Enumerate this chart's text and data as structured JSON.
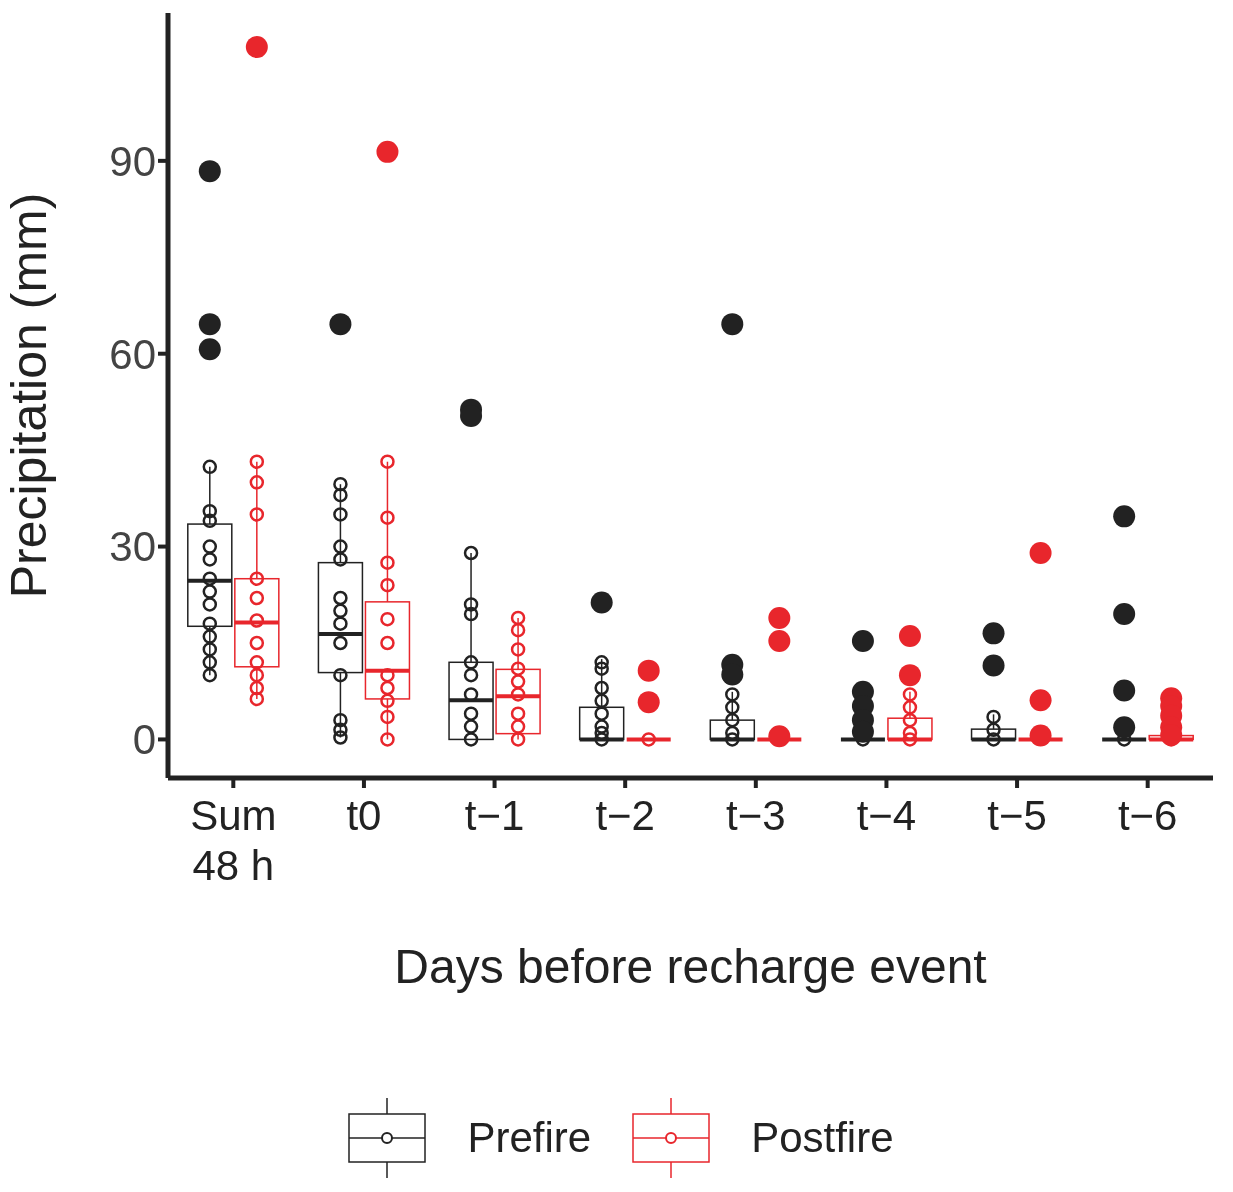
{
  "chart_data": {
    "type": "box",
    "xlabel": "Days before recharge event",
    "ylabel": "Precipitation (mm)",
    "categories": [
      "Sum 48 h",
      "t0",
      "t−1",
      "t−2",
      "t−3",
      "t−4",
      "t−5",
      "t−6"
    ],
    "ylim": [
      -6,
      113
    ],
    "yticks": [
      0,
      30,
      60,
      90
    ],
    "legend": "bottom",
    "marker": "circle",
    "series": [
      {
        "name": "Prefire",
        "color": "#222222",
        "boxes": [
          {
            "low": 10,
            "q1": 17.6,
            "median": 24.7,
            "q3": 33.5,
            "high": 42.4,
            "outliers": [
              88.4,
              64.6,
              60.7
            ]
          },
          {
            "low": 0.3,
            "q1": 10.4,
            "median": 16.4,
            "q3": 27.5,
            "high": 39.7,
            "outliers": [
              64.6
            ]
          },
          {
            "low": 0,
            "q1": 0,
            "median": 6.1,
            "q3": 12,
            "high": 29,
            "outliers": [
              51.3,
              50.3
            ]
          },
          {
            "low": 0,
            "q1": 0,
            "median": 0,
            "q3": 5,
            "high": 12.5,
            "outliers": [
              21.3
            ]
          },
          {
            "low": 0,
            "q1": 0,
            "median": 0,
            "q3": 3,
            "high": 7.4,
            "outliers": [
              64.6,
              11.6,
              10.1
            ]
          },
          {
            "low": 0,
            "q1": 0,
            "median": 0,
            "q3": 0,
            "high": 0,
            "outliers": [
              15.3,
              7.4,
              5.2,
              3,
              1.2
            ]
          },
          {
            "low": 0,
            "q1": 0,
            "median": 0,
            "q3": 1.6,
            "high": 3.9,
            "outliers": [
              16.5,
              11.5
            ]
          },
          {
            "low": 0,
            "q1": 0,
            "median": 0,
            "q3": 0,
            "high": 0,
            "outliers": [
              34.7,
              19.5,
              7.6,
              1.9
            ]
          }
        ]
      },
      {
        "name": "Postfire",
        "color": "#e8262c",
        "boxes": [
          {
            "low": 6.3,
            "q1": 11.3,
            "median": 18.2,
            "q3": 25,
            "high": 43.2,
            "outliers": [
              107.7
            ]
          },
          {
            "low": 0,
            "q1": 6.3,
            "median": 10.7,
            "q3": 21.4,
            "high": 43.2,
            "outliers": [
              91.4
            ]
          },
          {
            "low": 0,
            "q1": 0.9,
            "median": 6.7,
            "q3": 10.9,
            "high": 18.9
          },
          {
            "low": 0,
            "q1": 0,
            "median": 0,
            "q3": 0,
            "high": 0,
            "outliers": [
              10.7,
              5.8
            ]
          },
          {
            "low": 0,
            "q1": 0,
            "median": 0,
            "q3": 0,
            "high": 0,
            "outliers": [
              18.9,
              15.3,
              0.5
            ]
          },
          {
            "low": 0,
            "q1": 0,
            "median": 0,
            "q3": 3.3,
            "high": 7.4,
            "outliers": [
              16.1,
              10
            ]
          },
          {
            "low": 0,
            "q1": 0,
            "median": 0,
            "q3": 0,
            "high": 0,
            "outliers": [
              29,
              6.1,
              0.6
            ]
          },
          {
            "low": 0,
            "q1": 0,
            "median": 0,
            "q3": 0.6,
            "high": 0.6,
            "outliers": [
              6.4,
              5.2,
              3.7,
              1.9,
              0.7
            ]
          }
        ]
      },
      {
        "type": "scatter",
        "color": "#222222",
        "x": [
          "Sum 48 h",
          "Sum 48 h",
          "Sum 48 h",
          "Sum 48 h",
          "Sum 48 h",
          "Sum 48 h",
          "Sum 48 h",
          "Sum 48 h",
          "Sum 48 h",
          "Sum 48 h",
          "Sum 48 h",
          "Sum 48 h",
          "Sum 48 h",
          "t0",
          "t0",
          "t0",
          "t0",
          "t0",
          "t0",
          "t0",
          "t0",
          "t0",
          "t0",
          "t0",
          "t0",
          "t0",
          "t−1",
          "t−1",
          "t−1",
          "t−1",
          "t−1",
          "t−1",
          "t−1",
          "t−1",
          "t−1",
          "t−2",
          "t−2",
          "t−2",
          "t−2",
          "t−2",
          "t−2",
          "t−2",
          "t−2",
          "t−3",
          "t−3",
          "t−3",
          "t−3",
          "t−3",
          "t−4",
          "t−5",
          "t−5",
          "t−5",
          "t−6"
        ],
        "values": [
          42.4,
          35.5,
          34,
          30,
          28,
          25,
          23,
          21,
          18,
          16,
          14,
          12,
          10,
          39.7,
          38,
          35,
          30,
          28,
          22,
          20,
          18,
          15,
          10,
          3,
          1.5,
          0.3,
          29,
          21,
          19.5,
          12,
          10,
          7,
          4,
          2,
          0,
          12,
          11,
          8,
          6,
          4,
          2,
          1,
          0,
          7,
          5,
          3,
          1,
          0,
          0,
          3.5,
          1.5,
          0,
          0
        ]
      },
      {
        "type": "scatter",
        "color": "#e8262c",
        "x": [
          "Sum 48 h",
          "Sum 48 h",
          "Sum 48 h",
          "Sum 48 h",
          "Sum 48 h",
          "Sum 48 h",
          "Sum 48 h",
          "Sum 48 h",
          "Sum 48 h",
          "Sum 48 h",
          "Sum 48 h",
          "t0",
          "t0",
          "t0",
          "t0",
          "t0",
          "t0",
          "t0",
          "t0",
          "t0",
          "t0",
          "t0",
          "t−1",
          "t−1",
          "t−1",
          "t−1",
          "t−1",
          "t−1",
          "t−1",
          "t−1",
          "t−1",
          "t−2",
          "t−4",
          "t−4",
          "t−4",
          "t−4",
          "t−4",
          "t−6"
        ],
        "values": [
          43.2,
          40,
          35,
          25,
          22,
          18.5,
          15,
          12,
          10,
          8,
          6.3,
          43.2,
          34.5,
          27.5,
          24,
          18.7,
          15,
          10,
          8,
          6,
          3.5,
          0,
          18.9,
          17,
          14,
          11,
          9,
          7,
          4,
          2,
          0,
          0,
          7,
          5,
          3,
          1,
          0,
          0
        ]
      }
    ]
  }
}
